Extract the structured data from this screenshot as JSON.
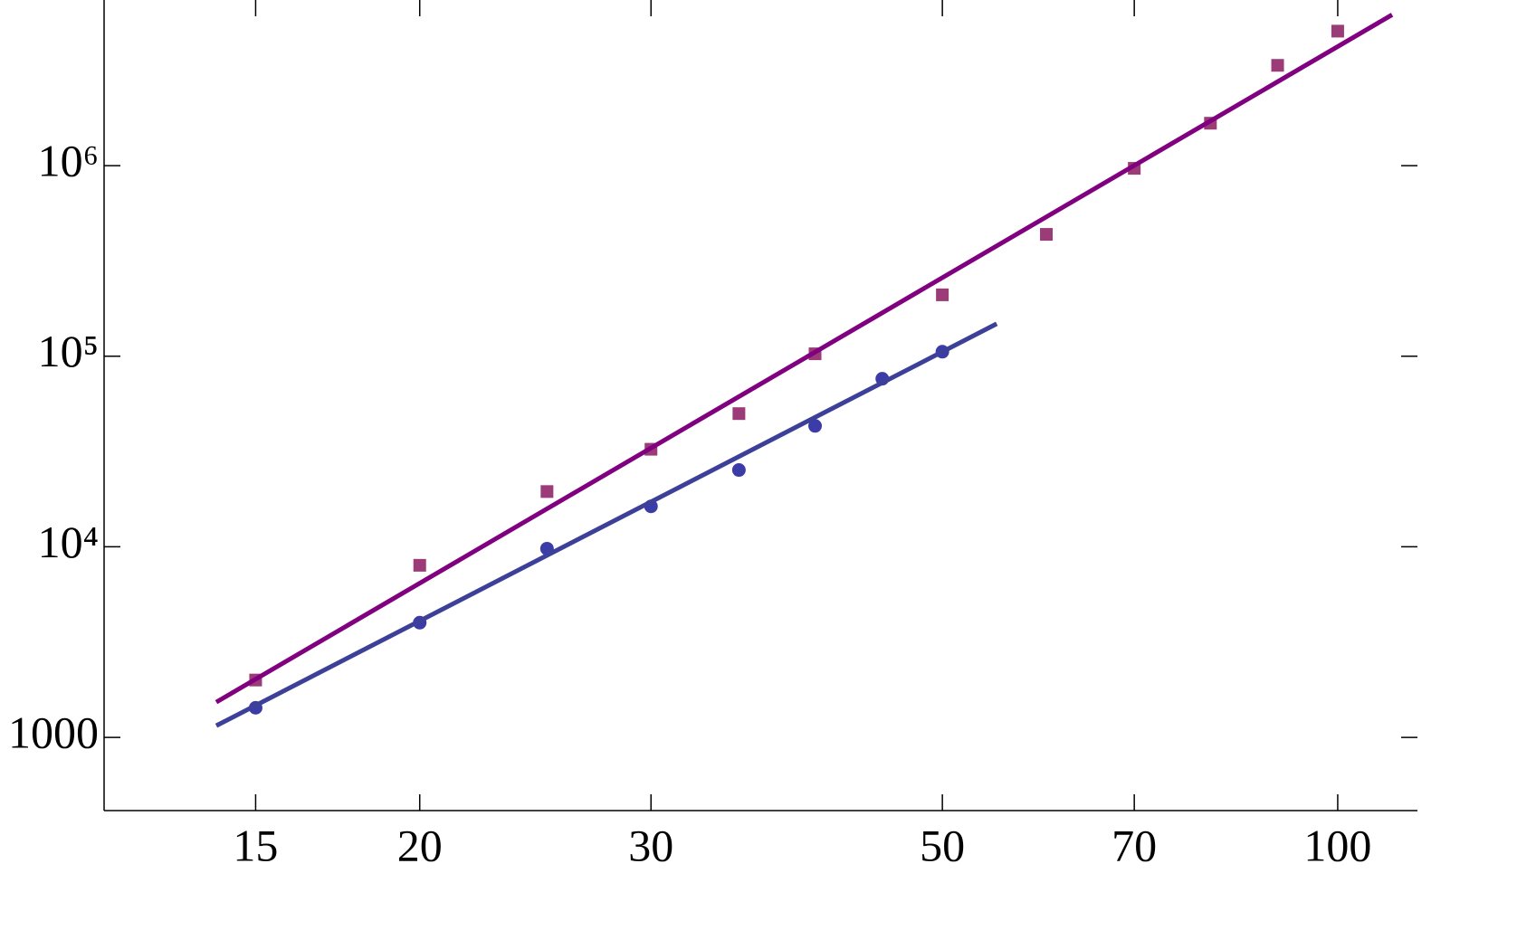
{
  "chart_data": {
    "type": "scatter",
    "xlog": true,
    "ylog": true,
    "xlim": [
      11.5,
      115
    ],
    "ylim": [
      413,
      7400000
    ],
    "xticks": [
      15,
      20,
      30,
      50,
      70,
      100
    ],
    "yticks": [
      1000,
      {
        "value": 10000,
        "label": "10⁴"
      },
      {
        "value": 100000,
        "label": "10⁵"
      },
      {
        "value": 1000000,
        "label": "10⁶"
      }
    ],
    "series": [
      {
        "type": "scatter",
        "marker": "square",
        "color": "#9b3b78",
        "x": [
          15,
          20,
          25,
          30,
          35,
          40,
          50,
          60,
          70,
          80,
          90,
          100
        ],
        "values": [
          2000,
          8000,
          19500,
          32500,
          50000,
          103000,
          210000,
          436000,
          968000,
          1670000,
          3360000,
          5080000
        ]
      },
      {
        "type": "scatter",
        "marker": "circle",
        "color": "#3c3ca8",
        "x": [
          15,
          20,
          25,
          30,
          35,
          40,
          45,
          50
        ],
        "values": [
          1430,
          4000,
          9780,
          16300,
          25300,
          43100,
          76200,
          105600
        ]
      },
      {
        "type": "line",
        "color": "#800080",
        "x": [
          14,
          110
        ],
        "values": [
          1531,
          6190000
        ]
      },
      {
        "type": "line",
        "color": "#3c4099",
        "x": [
          14,
          55
        ],
        "values": [
          1152,
          148000
        ]
      }
    ]
  }
}
